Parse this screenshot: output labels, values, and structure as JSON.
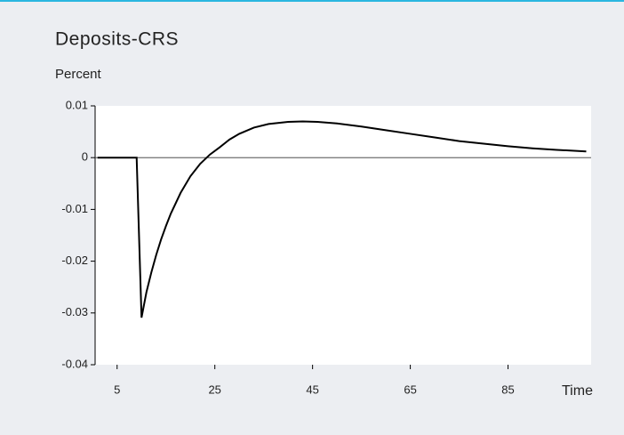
{
  "chart_data": {
    "type": "line",
    "title": "Deposits-CRS",
    "ylabel": "Percent",
    "xlabel": "Time",
    "x": [
      1,
      9,
      10,
      11,
      12,
      13,
      14,
      15,
      16,
      18,
      20,
      22,
      24,
      26,
      28,
      30,
      33,
      36,
      40,
      43,
      46,
      50,
      55,
      60,
      65,
      70,
      75,
      80,
      85,
      90,
      95,
      101
    ],
    "series": [
      {
        "color": "#000000",
        "values": [
          0,
          0,
          -0.0309,
          -0.026,
          -0.0222,
          -0.0188,
          -0.0158,
          -0.0132,
          -0.0108,
          -0.0068,
          -0.0036,
          -0.0012,
          0.0006,
          0.002,
          0.0035,
          0.0046,
          0.0058,
          0.0065,
          0.0069,
          0.007,
          0.0069,
          0.0066,
          0.006,
          0.0053,
          0.0046,
          0.0039,
          0.0032,
          0.0027,
          0.0022,
          0.0018,
          0.0015,
          0.0012
        ]
      }
    ],
    "xlim": [
      0.5,
      102
    ],
    "xticks": [
      5,
      25,
      45,
      65,
      85
    ],
    "ylim": [
      -0.04,
      0.01
    ],
    "yticks": [
      0.01,
      0,
      -0.01,
      -0.02,
      -0.03,
      -0.04
    ]
  }
}
